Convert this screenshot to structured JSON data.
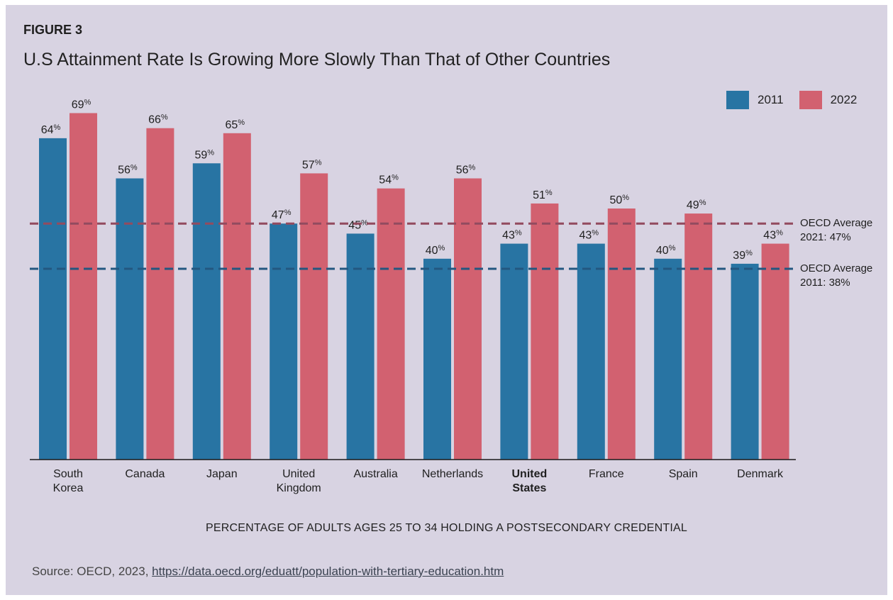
{
  "figure_label": "FIGURE 3",
  "title": "U.S Attainment Rate Is Growing More Slowly Than That of Other Countries",
  "source_prefix": "Source: OECD, 2023, ",
  "source_link": "https://data.oecd.org/eduatt/population-with-tertiary-education.htm",
  "colors": {
    "background": "#d8d3e2",
    "series_2011": "#2874a3",
    "series_2022": "#d26170"
  },
  "chart_data": {
    "type": "bar",
    "xlabel": "PERCENTAGE OF ADULTS AGES 25 TO 34 HOLDING A POSTSECONDARY CREDENTIAL",
    "ylabel": "",
    "ylim": [
      0,
      75
    ],
    "grid": false,
    "legend_position": "top-right",
    "categories": [
      [
        "South",
        "Korea"
      ],
      [
        "Canada"
      ],
      [
        "Japan"
      ],
      [
        "United",
        "Kingdom"
      ],
      [
        "Australia"
      ],
      [
        "Netherlands"
      ],
      [
        "United",
        "States"
      ],
      [
        "France"
      ],
      [
        "Spain"
      ],
      [
        "Denmark"
      ]
    ],
    "highlight_category": 6,
    "series": [
      {
        "name": "2011",
        "color": "#2874a3",
        "values": [
          64,
          56,
          59,
          47,
          45,
          40,
          43,
          43,
          40,
          39
        ]
      },
      {
        "name": "2022",
        "color": "#d26170",
        "values": [
          69,
          66,
          65,
          57,
          54,
          56,
          51,
          50,
          49,
          43
        ]
      }
    ],
    "value_suffix": "%",
    "reference_lines": [
      {
        "value": 47,
        "color": "#d26170",
        "label": [
          "OECD Average",
          "2021: 47%"
        ]
      },
      {
        "value": 38,
        "color": "#2874a3",
        "label": [
          "OECD Average",
          "2011: 38%"
        ]
      }
    ]
  }
}
